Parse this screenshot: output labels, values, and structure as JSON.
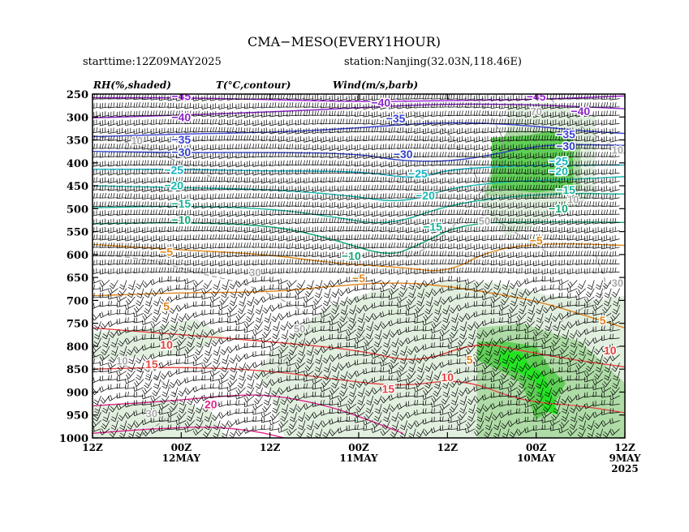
{
  "header": {
    "title": "CMA−MESO(EVERY1HOUR)",
    "starttime": "starttime:12Z09MAY2025",
    "station": "station:Nanjing(32.03N,118.46E)"
  },
  "legend": {
    "rh": "RH(%,shaded)",
    "temp": "T(°C,contour)",
    "wind": "Wind(m/s,barb)"
  },
  "colors": {
    "rh_light": "#dcecd9",
    "rh_mid": "#a8d8a0",
    "rh_high": "#59cc4f",
    "rh_max": "#1ee61e",
    "rh_contour": "#a0a0a0",
    "barb": "#000000",
    "t_minus45": "#9c1fd6",
    "t_minus40": "#8c25c8",
    "t_minus35": "#3b44d8",
    "t_minus30": "#3040c8",
    "t_minus25": "#12b2c6",
    "t_minus20": "#15b8b0",
    "t_minus15": "#18b39a",
    "t_minus10": "#12a878",
    "t_minus5": "#e08a1d",
    "t_0": "#e08a1d",
    "t_5": "#e0831a",
    "t_10": "#e8403a",
    "t_15": "#e64848",
    "t_20": "#e0258c",
    "t_25": "#e0258c"
  },
  "chart_data": {
    "type": "time-height cross section",
    "y_axis": {
      "ticks": [
        "250",
        "300",
        "350",
        "400",
        "450",
        "500",
        "550",
        "600",
        "650",
        "700",
        "750",
        "800",
        "850",
        "900",
        "950",
        "1000"
      ],
      "ylim": [
        1000,
        250
      ]
    },
    "x_axis": {
      "ticks": [
        {
          "line1": "12Z",
          "line2": "",
          "line3": ""
        },
        {
          "line1": "00Z",
          "line2": "12MAY",
          "line3": ""
        },
        {
          "line1": "12Z",
          "line2": "",
          "line3": ""
        },
        {
          "line1": "00Z",
          "line2": "11MAY",
          "line3": ""
        },
        {
          "line1": "12Z",
          "line2": "",
          "line3": ""
        },
        {
          "line1": "00Z",
          "line2": "10MAY",
          "line3": ""
        },
        {
          "line1": "12Z",
          "line2": "9MAY",
          "line3": "2025"
        }
      ],
      "xlim": [
        72,
        0
      ],
      "direction": "time increases to the left"
    },
    "temperature_contours": [
      {
        "level": -45,
        "points": [
          [
            72,
            258
          ],
          [
            60,
            258
          ],
          [
            48,
            262
          ],
          [
            36,
            267
          ],
          [
            24,
            264
          ],
          [
            12,
            262
          ],
          [
            0,
            254
          ]
        ]
      },
      {
        "level": -40,
        "points": [
          [
            72,
            302
          ],
          [
            60,
            296
          ],
          [
            48,
            289
          ],
          [
            36,
            280
          ],
          [
            26,
            272
          ],
          [
            16,
            272
          ],
          [
            8,
            276
          ],
          [
            0,
            282
          ]
        ]
      },
      {
        "level": -35,
        "points": [
          [
            72,
            343
          ],
          [
            60,
            337
          ],
          [
            48,
            334
          ],
          [
            36,
            324
          ],
          [
            28,
            314
          ],
          [
            20,
            312
          ],
          [
            12,
            320
          ],
          [
            6,
            330
          ],
          [
            0,
            336
          ]
        ]
      },
      {
        "level": -30,
        "points": [
          [
            72,
            375
          ],
          [
            60,
            378
          ],
          [
            48,
            377
          ],
          [
            36,
            380
          ],
          [
            30,
            397
          ],
          [
            22,
            396
          ],
          [
            12,
            362
          ],
          [
            6,
            360
          ],
          [
            0,
            362
          ]
        ]
      },
      {
        "level": -25,
        "points": [
          [
            72,
            414
          ],
          [
            60,
            414
          ],
          [
            48,
            418
          ],
          [
            36,
            418
          ],
          [
            28,
            436
          ],
          [
            24,
            414
          ],
          [
            14,
            406
          ],
          [
            6,
            405
          ],
          [
            0,
            405
          ]
        ]
      },
      {
        "level": -20,
        "points": [
          [
            72,
            450
          ],
          [
            60,
            454
          ],
          [
            48,
            458
          ],
          [
            38,
            470
          ],
          [
            30,
            488
          ],
          [
            24,
            456
          ],
          [
            16,
            440
          ],
          [
            8,
            437
          ],
          [
            0,
            430
          ]
        ]
      },
      {
        "level": -15,
        "points": [
          [
            72,
            498
          ],
          [
            60,
            494
          ],
          [
            48,
            500
          ],
          [
            40,
            516
          ],
          [
            32,
            538
          ],
          [
            24,
            492
          ],
          [
            16,
            474
          ],
          [
            8,
            466
          ],
          [
            0,
            468
          ]
        ]
      },
      {
        "level": -10,
        "points": [
          [
            72,
            533
          ],
          [
            60,
            530
          ],
          [
            48,
            536
          ],
          [
            40,
            564
          ],
          [
            32,
            605
          ],
          [
            28,
            580
          ],
          [
            22,
            532
          ],
          [
            12,
            528
          ],
          [
            0,
            530
          ]
        ]
      },
      {
        "level": -5,
        "points": [
          [
            72,
            578
          ],
          [
            60,
            590
          ],
          [
            48,
            600
          ],
          [
            40,
            618
          ],
          [
            30,
            628
          ],
          [
            24,
            640
          ],
          [
            18,
            588
          ],
          [
            10,
            575
          ],
          [
            0,
            580
          ]
        ]
      },
      {
        "level": 5,
        "points": [
          [
            72,
            690
          ],
          [
            60,
            683
          ],
          [
            48,
            682
          ],
          [
            40,
            670
          ],
          [
            32,
            660
          ],
          [
            24,
            668
          ],
          [
            12,
            700
          ],
          [
            4,
            740
          ],
          [
            0,
            760
          ]
        ]
      },
      {
        "level": 10,
        "points": [
          [
            72,
            760
          ],
          [
            60,
            775
          ],
          [
            48,
            790
          ],
          [
            36,
            808
          ],
          [
            28,
            838
          ],
          [
            20,
            790
          ],
          [
            14,
            810
          ],
          [
            6,
            832
          ],
          [
            0,
            845
          ]
        ]
      },
      {
        "level": 15,
        "points": [
          [
            72,
            850
          ],
          [
            60,
            845
          ],
          [
            48,
            853
          ],
          [
            38,
            875
          ],
          [
            30,
            888
          ],
          [
            22,
            870
          ],
          [
            14,
            920
          ],
          [
            6,
            930
          ],
          [
            0,
            945
          ]
        ]
      },
      {
        "level": 20,
        "points": [
          [
            72,
            930
          ],
          [
            62,
            920
          ],
          [
            54,
            908
          ],
          [
            48,
            905
          ],
          [
            40,
            930
          ],
          [
            34,
            965
          ],
          [
            30,
            990
          ]
        ]
      },
      {
        "level": 25,
        "points": [
          [
            72,
            990
          ],
          [
            64,
            980
          ],
          [
            56,
            975
          ],
          [
            50,
            985
          ],
          [
            46,
            1000
          ]
        ]
      }
    ],
    "rh_contours": [
      {
        "level": 10,
        "label_pos": [
          66,
          360
        ]
      },
      {
        "level": 30,
        "label_pos": [
          50,
          647
        ]
      },
      {
        "level": 50,
        "label_pos": [
          44,
          770
        ]
      },
      {
        "level": 50,
        "label_pos": [
          19,
          535
        ]
      },
      {
        "level": 70,
        "label_pos": [
          12,
          296
        ]
      },
      {
        "level": 10,
        "label_pos": [
          1,
          380
        ]
      },
      {
        "level": 10,
        "label_pos": [
          7,
          488
        ]
      },
      {
        "level": 30,
        "label_pos": [
          1,
          670
        ]
      },
      {
        "level": 30,
        "label_pos": [
          64,
          955
        ]
      },
      {
        "level": 10,
        "label_pos": [
          68,
          840
        ]
      }
    ],
    "temperature_labels": [
      {
        "text": "−45",
        "level": -45,
        "pos": [
          60,
          263
        ]
      },
      {
        "text": "−40",
        "level": -40,
        "pos": [
          33,
          277
        ]
      },
      {
        "text": "−45",
        "level": -45,
        "pos": [
          12,
          264
        ]
      },
      {
        "text": "−40",
        "level": -40,
        "pos": [
          60,
          309
        ]
      },
      {
        "text": "−40",
        "level": -40,
        "pos": [
          6,
          296
        ]
      },
      {
        "text": "−35",
        "level": -35,
        "pos": [
          31,
          312
        ]
      },
      {
        "text": "−35",
        "level": -35,
        "pos": [
          60,
          358
        ]
      },
      {
        "text": "−35",
        "level": -35,
        "pos": [
          8,
          346
        ]
      },
      {
        "text": "−30",
        "level": -30,
        "pos": [
          60,
          385
        ]
      },
      {
        "text": "−30",
        "level": -30,
        "pos": [
          30,
          390
        ]
      },
      {
        "text": "−30",
        "level": -30,
        "pos": [
          8,
          372
        ]
      },
      {
        "text": "−25",
        "level": -25,
        "pos": [
          61,
          424
        ]
      },
      {
        "text": "−25",
        "level": -25,
        "pos": [
          28,
          432
        ]
      },
      {
        "text": "−25",
        "level": -25,
        "pos": [
          9,
          405
        ]
      },
      {
        "text": "−20",
        "level": -20,
        "pos": [
          61,
          458
        ]
      },
      {
        "text": "−20",
        "level": -20,
        "pos": [
          27,
          480
        ]
      },
      {
        "text": "−20",
        "level": -20,
        "pos": [
          9,
          427
        ]
      },
      {
        "text": "−15",
        "level": -15,
        "pos": [
          60,
          498
        ]
      },
      {
        "text": "−15",
        "level": -15,
        "pos": [
          26,
          548
        ]
      },
      {
        "text": "−15",
        "level": -15,
        "pos": [
          8,
          468
        ]
      },
      {
        "text": "−10",
        "level": -10,
        "pos": [
          60,
          533
        ]
      },
      {
        "text": "−10",
        "level": -10,
        "pos": [
          37,
          612
        ]
      },
      {
        "text": "−10",
        "level": -10,
        "pos": [
          9,
          508
        ]
      },
      {
        "text": "−5",
        "level": -5,
        "pos": [
          62,
          603
        ]
      },
      {
        "text": "−5",
        "level": -5,
        "pos": [
          12,
          578
        ]
      },
      {
        "text": "−5",
        "level": -5,
        "pos": [
          36,
          660
        ]
      },
      {
        "text": "5",
        "level": 5,
        "pos": [
          62,
          721
        ]
      },
      {
        "text": "5",
        "level": 5,
        "pos": [
          3,
          752
        ]
      },
      {
        "text": "5",
        "level": 5,
        "pos": [
          21,
          838
        ]
      },
      {
        "text": "10",
        "level": 10,
        "pos": [
          62,
          805
        ]
      },
      {
        "text": "10",
        "level": 10,
        "pos": [
          2,
          818
        ]
      },
      {
        "text": "10",
        "level": 10,
        "pos": [
          24,
          876
        ]
      },
      {
        "text": "15",
        "level": 15,
        "pos": [
          64,
          848
        ]
      },
      {
        "text": "15",
        "level": 15,
        "pos": [
          32,
          902
        ]
      },
      {
        "text": "20",
        "level": 20,
        "pos": [
          56,
          935
        ]
      }
    ],
    "rh_shading_levels": [
      30,
      50,
      70,
      90
    ],
    "wind_units": "m/s"
  }
}
